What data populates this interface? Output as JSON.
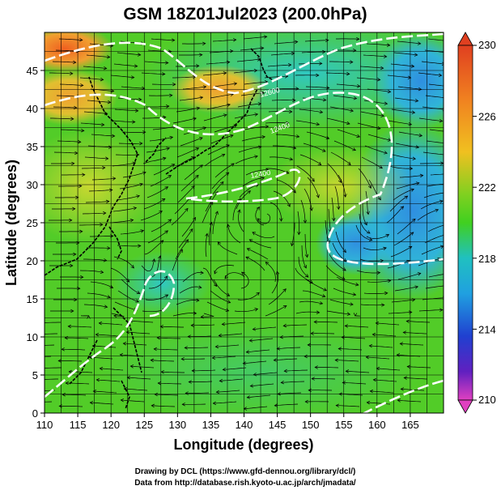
{
  "title": "GSM 18Z01Jul2023 (200.0hPa)",
  "x_axis": {
    "label": "Longitude (degrees)",
    "range": [
      110,
      170
    ],
    "ticks": [
      "110",
      "115",
      "120",
      "125",
      "130",
      "135",
      "140",
      "145",
      "150",
      "155",
      "160",
      "165"
    ]
  },
  "y_axis": {
    "label": "Latitude (degrees)",
    "range": [
      0,
      50
    ],
    "ticks": [
      "0",
      "5",
      "10",
      "15",
      "20",
      "25",
      "30",
      "35",
      "40",
      "45"
    ]
  },
  "colorbar": {
    "range": [
      210,
      230
    ],
    "ticks": [
      "230",
      "226",
      "222",
      "218",
      "214",
      "210"
    ],
    "colors": [
      "#e040c0",
      "#8020c0",
      "#2020c0",
      "#2060e0",
      "#20a0e0",
      "#20c0c0",
      "#20d080",
      "#40d020",
      "#80d020",
      "#c0d020",
      "#f0c020",
      "#f08020",
      "#e04020"
    ]
  },
  "contour_labels": [
    "12600",
    "12400",
    "12400"
  ],
  "credits": [
    "Drawing by DCL (https://www.gfd-dennou.org/library/dcl/)",
    "Data from http://database.rish.kyoto-u.ac.jp/arch/jmadata/"
  ]
}
